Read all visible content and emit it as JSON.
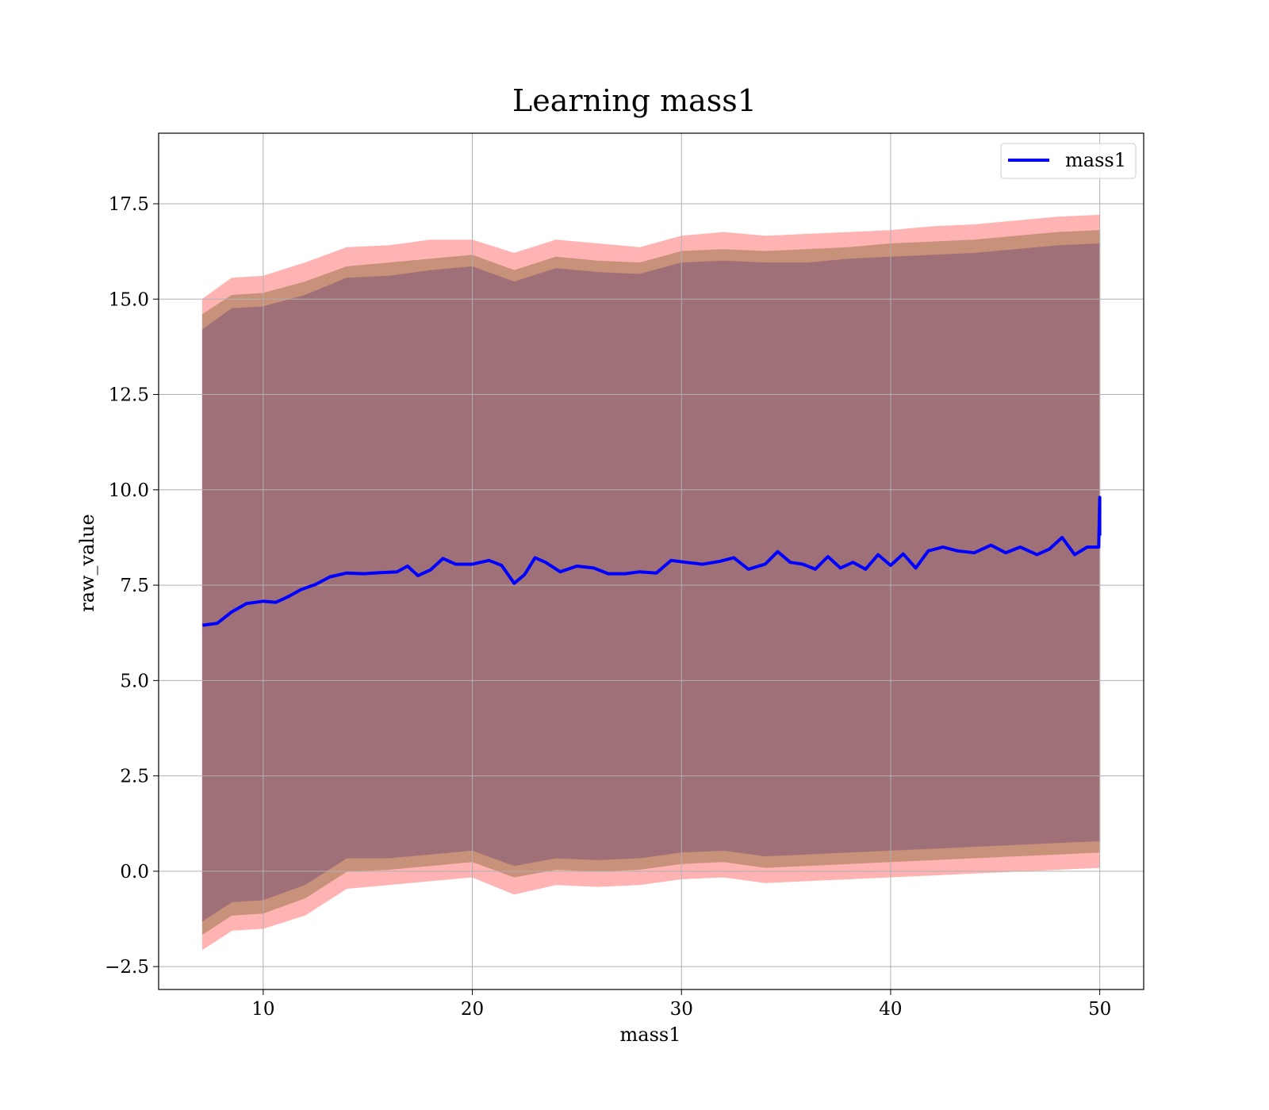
{
  "chart_data": {
    "type": "area",
    "title": "Learning mass1",
    "xlabel": "mass1",
    "ylabel": "raw_value",
    "xlim": [
      5,
      52.1
    ],
    "ylim": [
      -3.1,
      19.35
    ],
    "xticks": [
      10,
      20,
      30,
      40,
      50
    ],
    "yticks": [
      -2.5,
      0.0,
      2.5,
      5.0,
      7.5,
      10.0,
      12.5,
      15.0,
      17.5
    ],
    "ytick_labels": [
      "−2.5",
      "0.0",
      "2.5",
      "5.0",
      "7.5",
      "10.0",
      "12.5",
      "15.0",
      "17.5"
    ],
    "xtick_labels": [
      "10",
      "20",
      "30",
      "40",
      "50"
    ],
    "grid": true,
    "legend_position": "top-right",
    "colors": {
      "line": "#0000ff",
      "outer_band": "#ffb3b3",
      "middle_band": "#c8917a",
      "inner_band": "#a07078",
      "grid": "#b0b0b0"
    },
    "series": [
      {
        "name": "mass1",
        "kind": "line",
        "x": [
          7.1,
          7.8,
          8.5,
          9.2,
          10.0,
          10.6,
          11.2,
          11.8,
          12.5,
          13.2,
          14.0,
          14.8,
          15.6,
          16.4,
          16.9,
          17.4,
          18.0,
          18.6,
          19.2,
          20.0,
          20.8,
          21.4,
          22.0,
          22.5,
          23.0,
          23.5,
          24.2,
          25.0,
          25.8,
          26.5,
          27.3,
          28.0,
          28.8,
          29.5,
          30.2,
          31.0,
          31.8,
          32.5,
          33.2,
          34.0,
          34.6,
          35.2,
          35.8,
          36.4,
          37.0,
          37.6,
          38.2,
          38.8,
          39.4,
          40.0,
          40.6,
          41.2,
          41.8,
          42.5,
          43.2,
          44.0,
          44.8,
          45.5,
          46.2,
          47.0,
          47.6,
          48.2,
          48.8,
          49.4,
          49.95,
          50.0,
          50.0
        ],
        "y": [
          6.45,
          6.5,
          6.8,
          7.02,
          7.08,
          7.05,
          7.2,
          7.38,
          7.52,
          7.72,
          7.82,
          7.8,
          7.83,
          7.85,
          8.0,
          7.75,
          7.9,
          8.2,
          8.05,
          8.05,
          8.15,
          8.02,
          7.55,
          7.78,
          8.22,
          8.1,
          7.85,
          8.0,
          7.95,
          7.8,
          7.8,
          7.85,
          7.82,
          8.15,
          8.1,
          8.05,
          8.12,
          8.22,
          7.92,
          8.05,
          8.38,
          8.1,
          8.05,
          7.92,
          8.25,
          7.95,
          8.1,
          7.92,
          8.3,
          8.02,
          8.32,
          7.95,
          8.4,
          8.5,
          8.4,
          8.35,
          8.55,
          8.35,
          8.5,
          8.3,
          8.45,
          8.75,
          8.3,
          8.5,
          8.5,
          9.8,
          8.8
        ]
      },
      {
        "name": "",
        "kind": "band",
        "fill": "#ffb3b3",
        "x": [
          7.1,
          8.5,
          10.0,
          12.0,
          14.0,
          16.0,
          18.0,
          20.0,
          22.0,
          24.0,
          26.0,
          28.0,
          30.0,
          32.0,
          34.0,
          36.0,
          38.0,
          40.0,
          42.0,
          44.0,
          46.0,
          48.0,
          50.0
        ],
        "upper": [
          15.0,
          15.55,
          15.6,
          15.95,
          16.35,
          16.4,
          16.55,
          16.55,
          16.2,
          16.55,
          16.45,
          16.35,
          16.65,
          16.75,
          16.65,
          16.7,
          16.75,
          16.8,
          16.9,
          16.95,
          17.05,
          17.15,
          17.2
        ],
        "lower": [
          -2.05,
          -1.55,
          -1.5,
          -1.15,
          -0.45,
          -0.35,
          -0.25,
          -0.15,
          -0.6,
          -0.35,
          -0.4,
          -0.35,
          -0.2,
          -0.15,
          -0.3,
          -0.25,
          -0.2,
          -0.15,
          -0.1,
          -0.05,
          0.0,
          0.05,
          0.1
        ]
      },
      {
        "name": "",
        "kind": "band",
        "fill": "#c8917a",
        "x": [
          7.1,
          8.5,
          10.0,
          12.0,
          14.0,
          16.0,
          18.0,
          20.0,
          22.0,
          24.0,
          26.0,
          28.0,
          30.0,
          32.0,
          34.0,
          36.0,
          38.0,
          40.0,
          42.0,
          44.0,
          46.0,
          48.0,
          50.0
        ],
        "upper": [
          14.6,
          15.1,
          15.15,
          15.45,
          15.85,
          15.95,
          16.05,
          16.15,
          15.75,
          16.1,
          16.0,
          15.95,
          16.25,
          16.3,
          16.25,
          16.3,
          16.35,
          16.45,
          16.5,
          16.55,
          16.65,
          16.75,
          16.8
        ],
        "lower": [
          -1.65,
          -1.15,
          -1.1,
          -0.7,
          0.0,
          0.05,
          0.15,
          0.25,
          -0.15,
          0.05,
          0.0,
          0.05,
          0.2,
          0.25,
          0.1,
          0.15,
          0.2,
          0.25,
          0.3,
          0.35,
          0.4,
          0.45,
          0.5
        ]
      },
      {
        "name": "",
        "kind": "band",
        "fill": "#a07078",
        "x": [
          7.1,
          8.5,
          10.0,
          12.0,
          14.0,
          16.0,
          18.0,
          20.0,
          22.0,
          24.0,
          26.0,
          28.0,
          30.0,
          32.0,
          34.0,
          36.0,
          38.0,
          40.0,
          42.0,
          44.0,
          46.0,
          48.0,
          50.0
        ],
        "upper": [
          14.2,
          14.75,
          14.8,
          15.1,
          15.55,
          15.6,
          15.75,
          15.85,
          15.45,
          15.8,
          15.7,
          15.65,
          15.95,
          16.0,
          15.95,
          15.95,
          16.05,
          16.1,
          16.15,
          16.2,
          16.3,
          16.4,
          16.45
        ],
        "lower": [
          -1.3,
          -0.8,
          -0.75,
          -0.35,
          0.35,
          0.35,
          0.45,
          0.55,
          0.15,
          0.35,
          0.3,
          0.35,
          0.5,
          0.55,
          0.4,
          0.45,
          0.5,
          0.55,
          0.6,
          0.65,
          0.7,
          0.75,
          0.8
        ]
      }
    ]
  }
}
